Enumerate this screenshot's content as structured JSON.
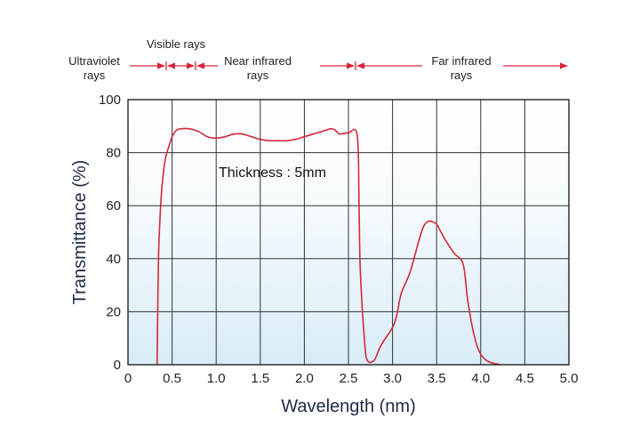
{
  "chart_data": {
    "type": "line",
    "title": "",
    "xlabel": "Wavelength (nm)",
    "ylabel": "Transmittance (%)",
    "xlim": [
      0,
      5.0
    ],
    "ylim": [
      0,
      100
    ],
    "xticks": [
      "0",
      "0.5",
      "1.0",
      "1.5",
      "2.0",
      "2.5",
      "3.0",
      "3.5",
      "4.0",
      "4.5",
      "5.0"
    ],
    "yticks": [
      "0",
      "20",
      "40",
      "60",
      "80",
      "100"
    ],
    "grid": true,
    "annotation": "Thickness : 5mm",
    "series": [
      {
        "color": "#d4283a",
        "x": [
          0.33,
          0.34,
          0.35,
          0.38,
          0.42,
          0.47,
          0.5,
          0.55,
          0.6,
          0.7,
          0.8,
          0.9,
          1.0,
          1.1,
          1.2,
          1.3,
          1.4,
          1.5,
          1.6,
          1.7,
          1.8,
          1.9,
          2.0,
          2.1,
          2.2,
          2.3,
          2.35,
          2.4,
          2.5,
          2.6,
          2.62,
          2.63,
          2.65,
          2.68,
          2.7,
          2.73,
          2.76,
          2.8,
          2.85,
          2.9,
          3.0,
          3.05,
          3.1,
          3.2,
          3.3,
          3.35,
          3.4,
          3.45,
          3.5,
          3.55,
          3.6,
          3.7,
          3.8,
          3.85,
          3.9,
          3.95,
          4.0,
          4.05,
          4.1,
          4.15,
          4.2,
          4.22
        ],
        "y": [
          0,
          27,
          45,
          65,
          77,
          83,
          86,
          88.5,
          89,
          89,
          88,
          86,
          85.5,
          86,
          87,
          87,
          86,
          85,
          84.5,
          84.5,
          84.5,
          85,
          86,
          87,
          88,
          89,
          88.5,
          87,
          87.5,
          86.5,
          60,
          40,
          25,
          10,
          3,
          1,
          1,
          2,
          6,
          9,
          14,
          19,
          27,
          35,
          47,
          52,
          54,
          54,
          53,
          50,
          47,
          42,
          38,
          25,
          15,
          8,
          4,
          2,
          1,
          0.5,
          0.2,
          0
        ]
      }
    ]
  },
  "bands": {
    "ultraviolet": [
      "Ultraviolet",
      "rays"
    ],
    "visible": "Visible rays",
    "near_infrared": [
      "Near infrared",
      "rays"
    ],
    "far_infrared": [
      "Far infrared",
      "rays"
    ]
  }
}
